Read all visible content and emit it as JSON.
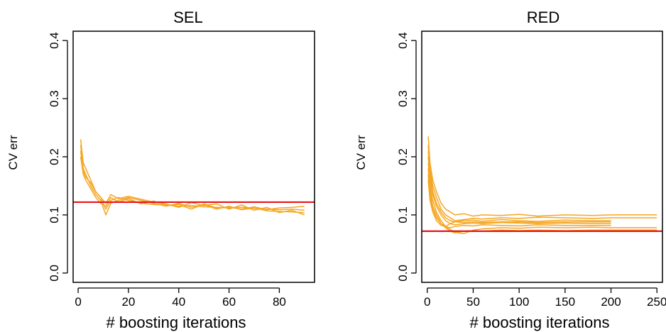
{
  "colors": {
    "series": "#F5A623",
    "reference": "#E8141B",
    "axis": "#000000"
  },
  "chart_data": [
    {
      "type": "line",
      "title": "SEL",
      "xlabel": "# boosting iterations",
      "ylabel": "CV err",
      "xlim": [
        -2,
        94
      ],
      "ylim": [
        -0.016,
        0.416
      ],
      "xticks": [
        "0",
        "20",
        "40",
        "60",
        "80"
      ],
      "xtick_values": [
        0,
        20,
        40,
        60,
        80
      ],
      "yticks": [
        "0.0",
        "0.1",
        "0.2",
        "0.3",
        "0.4"
      ],
      "ytick_values": [
        0.0,
        0.1,
        0.2,
        0.3,
        0.4
      ],
      "reference_line": 0.122,
      "series": [
        {
          "x": [
            1,
            2,
            3,
            5,
            7,
            9,
            11,
            13,
            16,
            20,
            25,
            30,
            35,
            40,
            45,
            50,
            55,
            60,
            65,
            70,
            75,
            80,
            85,
            90
          ],
          "values": [
            0.23,
            0.19,
            0.18,
            0.16,
            0.14,
            0.13,
            0.11,
            0.125,
            0.13,
            0.125,
            0.12,
            0.118,
            0.117,
            0.115,
            0.116,
            0.114,
            0.113,
            0.112,
            0.113,
            0.111,
            0.11,
            0.109,
            0.11,
            0.108
          ]
        },
        {
          "x": [
            1,
            2,
            3,
            5,
            7,
            9,
            11,
            13,
            16,
            20,
            25,
            30,
            35,
            40,
            45,
            50,
            55,
            60,
            65,
            70,
            75,
            80,
            85,
            90
          ],
          "values": [
            0.22,
            0.18,
            0.17,
            0.15,
            0.135,
            0.125,
            0.1,
            0.12,
            0.125,
            0.13,
            0.125,
            0.12,
            0.115,
            0.12,
            0.113,
            0.118,
            0.11,
            0.115,
            0.109,
            0.112,
            0.107,
            0.106,
            0.105,
            0.104
          ]
        },
        {
          "x": [
            1,
            2,
            3,
            5,
            7,
            9,
            11,
            13,
            16,
            20,
            25,
            30,
            35,
            40,
            45,
            50,
            55,
            60,
            65,
            70,
            75,
            80,
            85,
            90
          ],
          "values": [
            0.21,
            0.175,
            0.165,
            0.155,
            0.14,
            0.13,
            0.12,
            0.135,
            0.128,
            0.132,
            0.127,
            0.122,
            0.119,
            0.113,
            0.121,
            0.116,
            0.119,
            0.11,
            0.117,
            0.108,
            0.113,
            0.104,
            0.108,
            0.1
          ]
        },
        {
          "x": [
            1,
            2,
            3,
            5,
            7,
            9,
            11,
            13,
            16,
            20,
            25,
            30,
            35,
            40,
            45,
            50,
            55,
            60,
            65,
            70,
            75,
            80,
            85,
            90
          ],
          "values": [
            0.2,
            0.17,
            0.16,
            0.145,
            0.13,
            0.12,
            0.115,
            0.13,
            0.122,
            0.128,
            0.119,
            0.124,
            0.116,
            0.118,
            0.11,
            0.119,
            0.112,
            0.113,
            0.11,
            0.114,
            0.109,
            0.112,
            0.113,
            0.115
          ]
        }
      ]
    },
    {
      "type": "line",
      "title": "RED",
      "xlabel": "# boosting iterations",
      "ylabel": "CV err",
      "xlim": [
        -6,
        256
      ],
      "ylim": [
        -0.016,
        0.416
      ],
      "xticks": [
        "0",
        "50",
        "100",
        "150",
        "200",
        "250"
      ],
      "xtick_values": [
        0,
        50,
        100,
        150,
        200,
        250
      ],
      "yticks": [
        "0.0",
        "0.1",
        "0.2",
        "0.3",
        "0.4"
      ],
      "ytick_values": [
        0.0,
        0.1,
        0.2,
        0.3,
        0.4
      ],
      "reference_line": 0.072,
      "series": [
        {
          "x": [
            1,
            3,
            6,
            10,
            15,
            20,
            25,
            30,
            40,
            50,
            60,
            80,
            100,
            120,
            150,
            180,
            200,
            220,
            250
          ],
          "values": [
            0.235,
            0.19,
            0.16,
            0.14,
            0.12,
            0.11,
            0.105,
            0.1,
            0.102,
            0.098,
            0.1,
            0.099,
            0.101,
            0.098,
            0.1,
            0.099,
            0.1,
            0.1,
            0.1
          ]
        },
        {
          "x": [
            1,
            3,
            6,
            10,
            15,
            20,
            25,
            30,
            40,
            50,
            60,
            80,
            100,
            120,
            150,
            180,
            200,
            220,
            250
          ],
          "values": [
            0.22,
            0.18,
            0.15,
            0.13,
            0.11,
            0.1,
            0.095,
            0.09,
            0.092,
            0.094,
            0.093,
            0.095,
            0.094,
            0.096,
            0.095,
            0.094,
            0.095,
            0.095,
            0.095
          ]
        },
        {
          "x": [
            1,
            3,
            6,
            10,
            15,
            20,
            25,
            30,
            40,
            50,
            60,
            80,
            100,
            120,
            150,
            180,
            200
          ],
          "values": [
            0.21,
            0.17,
            0.14,
            0.12,
            0.105,
            0.095,
            0.09,
            0.088,
            0.09,
            0.091,
            0.089,
            0.092,
            0.09,
            0.089,
            0.091,
            0.09,
            0.09
          ]
        },
        {
          "x": [
            1,
            3,
            6,
            10,
            15,
            20,
            25,
            30,
            40,
            50,
            60,
            80,
            100,
            120,
            150,
            180,
            200
          ],
          "values": [
            0.2,
            0.16,
            0.135,
            0.115,
            0.1,
            0.09,
            0.085,
            0.083,
            0.085,
            0.086,
            0.085,
            0.087,
            0.086,
            0.085,
            0.086,
            0.085,
            0.085
          ]
        },
        {
          "x": [
            1,
            3,
            6,
            10,
            15,
            20,
            25,
            30,
            40,
            50,
            60,
            80,
            100,
            120,
            150,
            180,
            200,
            220,
            250
          ],
          "values": [
            0.19,
            0.15,
            0.125,
            0.105,
            0.09,
            0.08,
            0.075,
            0.07,
            0.068,
            0.074,
            0.076,
            0.078,
            0.077,
            0.079,
            0.078,
            0.079,
            0.078,
            0.078,
            0.078
          ]
        },
        {
          "x": [
            1,
            3,
            6,
            10,
            15,
            20,
            25,
            30,
            40,
            50,
            60,
            80,
            100,
            120,
            150,
            180,
            200,
            220,
            250
          ],
          "values": [
            0.18,
            0.14,
            0.115,
            0.1,
            0.085,
            0.078,
            0.072,
            0.069,
            0.072,
            0.073,
            0.072,
            0.074,
            0.073,
            0.074,
            0.073,
            0.074,
            0.074,
            0.074,
            0.074
          ]
        },
        {
          "x": [
            1,
            3,
            6,
            10,
            15,
            20,
            25,
            30,
            40,
            50,
            60,
            80,
            100,
            120,
            150,
            180,
            200
          ],
          "values": [
            0.17,
            0.13,
            0.11,
            0.095,
            0.085,
            0.08,
            0.078,
            0.08,
            0.082,
            0.081,
            0.083,
            0.082,
            0.081,
            0.083,
            0.082,
            0.082,
            0.082
          ]
        },
        {
          "x": [
            1,
            3,
            6,
            10,
            15,
            20,
            25,
            30,
            40,
            50,
            60,
            80,
            100,
            120,
            150,
            180,
            200
          ],
          "values": [
            0.16,
            0.125,
            0.105,
            0.09,
            0.082,
            0.08,
            0.085,
            0.088,
            0.087,
            0.088,
            0.087,
            0.088,
            0.088,
            0.087,
            0.088,
            0.088,
            0.088
          ]
        }
      ]
    }
  ]
}
